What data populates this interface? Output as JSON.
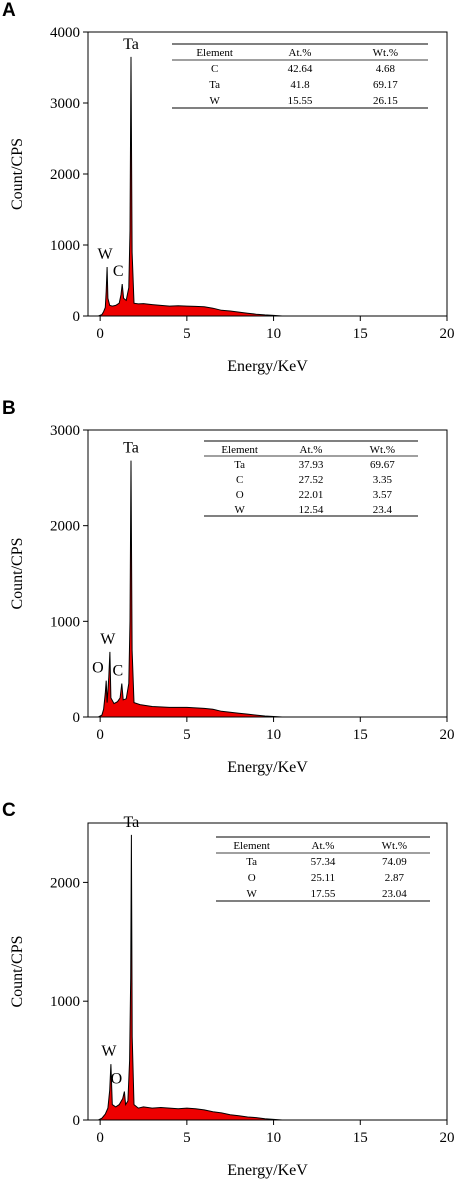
{
  "chart_data": [
    {
      "panel": "A",
      "type": "area",
      "xlabel": "Energy/KeV",
      "ylabel": "Count/CPS",
      "xlim": [
        -0.7,
        20
      ],
      "ylim": [
        0,
        4000
      ],
      "xticks": [
        0,
        5,
        10,
        15,
        20
      ],
      "yticks": [
        0,
        1000,
        2000,
        3000,
        4000
      ],
      "spectrum": [
        [
          -0.1,
          0
        ],
        [
          0.1,
          20
        ],
        [
          0.2,
          60
        ],
        [
          0.3,
          120
        ],
        [
          0.35,
          350
        ],
        [
          0.4,
          690
        ],
        [
          0.45,
          250
        ],
        [
          0.55,
          150
        ],
        [
          0.7,
          140
        ],
        [
          0.9,
          150
        ],
        [
          1.1,
          180
        ],
        [
          1.2,
          300
        ],
        [
          1.27,
          450
        ],
        [
          1.35,
          250
        ],
        [
          1.5,
          220
        ],
        [
          1.65,
          400
        ],
        [
          1.72,
          1200
        ],
        [
          1.78,
          3650
        ],
        [
          1.84,
          900
        ],
        [
          1.95,
          180
        ],
        [
          2.2,
          170
        ],
        [
          2.5,
          175
        ],
        [
          3.0,
          160
        ],
        [
          3.5,
          150
        ],
        [
          4.0,
          140
        ],
        [
          4.5,
          145
        ],
        [
          5.0,
          140
        ],
        [
          5.5,
          135
        ],
        [
          6.0,
          130
        ],
        [
          6.5,
          110
        ],
        [
          7.0,
          80
        ],
        [
          7.5,
          70
        ],
        [
          8.0,
          55
        ],
        [
          8.5,
          40
        ],
        [
          9.0,
          25
        ],
        [
          9.5,
          15
        ],
        [
          10.0,
          8
        ],
        [
          10.5,
          0
        ]
      ],
      "peaks": [
        {
          "label": "Ta",
          "x": 1.78,
          "y": 3650
        },
        {
          "label": "W",
          "x": 0.4,
          "y": 690
        },
        {
          "label": "C",
          "x": 1.27,
          "y": 450
        }
      ],
      "table": {
        "columns": [
          "Element",
          "At.%",
          "Wt.%"
        ],
        "rows": [
          [
            "C",
            "42.64",
            "4.68"
          ],
          [
            "Ta",
            "41.8",
            "69.17"
          ],
          [
            "W",
            "15.55",
            "26.15"
          ]
        ]
      }
    },
    {
      "panel": "B",
      "type": "area",
      "xlabel": "Energy/KeV",
      "ylabel": "Count/CPS",
      "xlim": [
        -0.7,
        20
      ],
      "ylim": [
        0,
        3000
      ],
      "xticks": [
        0,
        5,
        10,
        15,
        20
      ],
      "yticks": [
        0,
        1000,
        2000,
        3000
      ],
      "spectrum": [
        [
          -0.1,
          0
        ],
        [
          0.1,
          20
        ],
        [
          0.2,
          80
        ],
        [
          0.3,
          250
        ],
        [
          0.35,
          380
        ],
        [
          0.4,
          150
        ],
        [
          0.5,
          420
        ],
        [
          0.56,
          680
        ],
        [
          0.62,
          200
        ],
        [
          0.8,
          140
        ],
        [
          1.0,
          160
        ],
        [
          1.15,
          200
        ],
        [
          1.25,
          350
        ],
        [
          1.33,
          180
        ],
        [
          1.5,
          190
        ],
        [
          1.65,
          350
        ],
        [
          1.72,
          1000
        ],
        [
          1.78,
          2680
        ],
        [
          1.84,
          700
        ],
        [
          1.95,
          150
        ],
        [
          2.3,
          130
        ],
        [
          3.0,
          110
        ],
        [
          4.0,
          100
        ],
        [
          5.0,
          100
        ],
        [
          6.0,
          90
        ],
        [
          6.5,
          80
        ],
        [
          7.0,
          60
        ],
        [
          7.5,
          50
        ],
        [
          8.0,
          40
        ],
        [
          8.5,
          30
        ],
        [
          9.0,
          20
        ],
        [
          9.5,
          10
        ],
        [
          10.0,
          5
        ],
        [
          10.5,
          0
        ]
      ],
      "peaks": [
        {
          "label": "Ta",
          "x": 1.78,
          "y": 2680
        },
        {
          "label": "W",
          "x": 0.56,
          "y": 680
        },
        {
          "label": "O",
          "x": 0.33,
          "y": 380
        },
        {
          "label": "C",
          "x": 1.25,
          "y": 350
        }
      ],
      "table": {
        "columns": [
          "Element",
          "At.%",
          "Wt.%"
        ],
        "rows": [
          [
            "Ta",
            "37.93",
            "69.67"
          ],
          [
            "C",
            "27.52",
            "3.35"
          ],
          [
            "O",
            "22.01",
            "3.57"
          ],
          [
            "W",
            "12.54",
            "23.4"
          ]
        ]
      }
    },
    {
      "panel": "C",
      "type": "area",
      "xlabel": "Energy/KeV",
      "ylabel": "Count/CPS",
      "xlim": [
        -0.7,
        20
      ],
      "ylim": [
        0,
        2500
      ],
      "xticks": [
        0,
        5,
        10,
        15,
        20
      ],
      "yticks": [
        0,
        1000,
        2000
      ],
      "spectrum": [
        [
          -0.1,
          0
        ],
        [
          0.1,
          15
        ],
        [
          0.3,
          50
        ],
        [
          0.45,
          100
        ],
        [
          0.55,
          250
        ],
        [
          0.62,
          470
        ],
        [
          0.7,
          130
        ],
        [
          0.9,
          110
        ],
        [
          1.1,
          130
        ],
        [
          1.3,
          180
        ],
        [
          1.4,
          240
        ],
        [
          1.47,
          130
        ],
        [
          1.6,
          160
        ],
        [
          1.7,
          500
        ],
        [
          1.76,
          1200
        ],
        [
          1.8,
          2400
        ],
        [
          1.85,
          700
        ],
        [
          1.95,
          130
        ],
        [
          2.2,
          100
        ],
        [
          2.5,
          110
        ],
        [
          3.0,
          100
        ],
        [
          3.5,
          105
        ],
        [
          4.0,
          100
        ],
        [
          4.5,
          95
        ],
        [
          5.0,
          100
        ],
        [
          5.5,
          95
        ],
        [
          6.0,
          85
        ],
        [
          6.5,
          70
        ],
        [
          7.0,
          60
        ],
        [
          7.5,
          45
        ],
        [
          8.0,
          35
        ],
        [
          8.5,
          25
        ],
        [
          9.0,
          20
        ],
        [
          9.5,
          10
        ],
        [
          10.0,
          5
        ],
        [
          10.5,
          0
        ]
      ],
      "peaks": [
        {
          "label": "Ta",
          "x": 1.8,
          "y": 2400
        },
        {
          "label": "W",
          "x": 0.62,
          "y": 470
        },
        {
          "label": "O",
          "x": 1.4,
          "y": 240
        }
      ],
      "table": {
        "columns": [
          "Element",
          "At.%",
          "Wt.%"
        ],
        "rows": [
          [
            "Ta",
            "57.34",
            "74.09"
          ],
          [
            "O",
            "25.11",
            "2.87"
          ],
          [
            "W",
            "17.55",
            "23.04"
          ]
        ]
      }
    }
  ]
}
